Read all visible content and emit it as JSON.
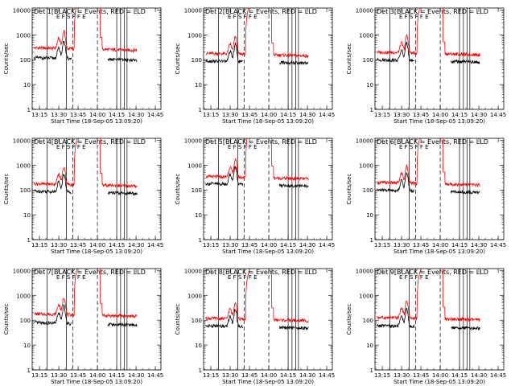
{
  "chart_data": {
    "type": "line",
    "layout": "3x3 grid",
    "shared": {
      "xlabel": "Start Time (18-Sep-05 13:09:20)",
      "ylabel": "Counts/sec",
      "x_ticks": [
        "13:15",
        "13:30",
        "13:45",
        "14:00",
        "14:15",
        "14:30",
        "14:45"
      ],
      "y_ticks": [
        "1",
        "10",
        "100",
        "1000",
        "10000"
      ],
      "xlim": [
        "13:09:20",
        "14:49:20"
      ],
      "ylim": [
        1,
        12000
      ],
      "y_scale": "log",
      "series_colors": {
        "events": "#000000",
        "lld": "#ff0000"
      },
      "marker_solid_minutes": [
        "13:21",
        "13:36",
        "14:15",
        "14:18",
        "14:21",
        "14:23"
      ],
      "marker_dashed_minutes": [
        "13:41",
        "14:00"
      ],
      "legend": "none"
    },
    "panels": [
      {
        "title": "Det  1[BLACK = Events, RED = LLD",
        "labels": "E  F  S  F  F  E"
      },
      {
        "title": "Det  2[BLACK = Events, RED = LLD",
        "labels": "E  F  S  F  F  E"
      },
      {
        "title": "Det  3[BLACK = Events, RED = LLD",
        "labels": "E  F  S  F  F  E"
      },
      {
        "title": "Det  4[BLACK = Events, RED = LLD",
        "labels": "E  F  S  F  F  E"
      },
      {
        "title": "Det  5[BLACK = Events, RED = LLD",
        "labels": "E  F  S  F  F  E"
      },
      {
        "title": "Det  6[BLACK = Events, RED = LLD",
        "labels": "E  F  S  F  F  E"
      },
      {
        "title": "Det  7[BLACK = Events, RED = LLD",
        "labels": "E  F  S  F  F  E"
      },
      {
        "title": "Det  8[BLACK = Events, RED = LLD",
        "labels": "E  F  S  F  F  E"
      },
      {
        "title": "Det  9[BLACK = Events, RED = LLD",
        "labels": "E  F  S  F  F  E"
      }
    ],
    "series_profiles": {
      "lld_baseline": [
        300,
        180,
        200,
        180,
        350,
        200,
        180,
        120,
        130
      ],
      "events_baseline": [
        120,
        90,
        100,
        90,
        180,
        100,
        80,
        60,
        60
      ],
      "flare_peak_minute": "13:34",
      "saturated_range_minutes": [
        "13:45",
        "14:02"
      ]
    }
  }
}
